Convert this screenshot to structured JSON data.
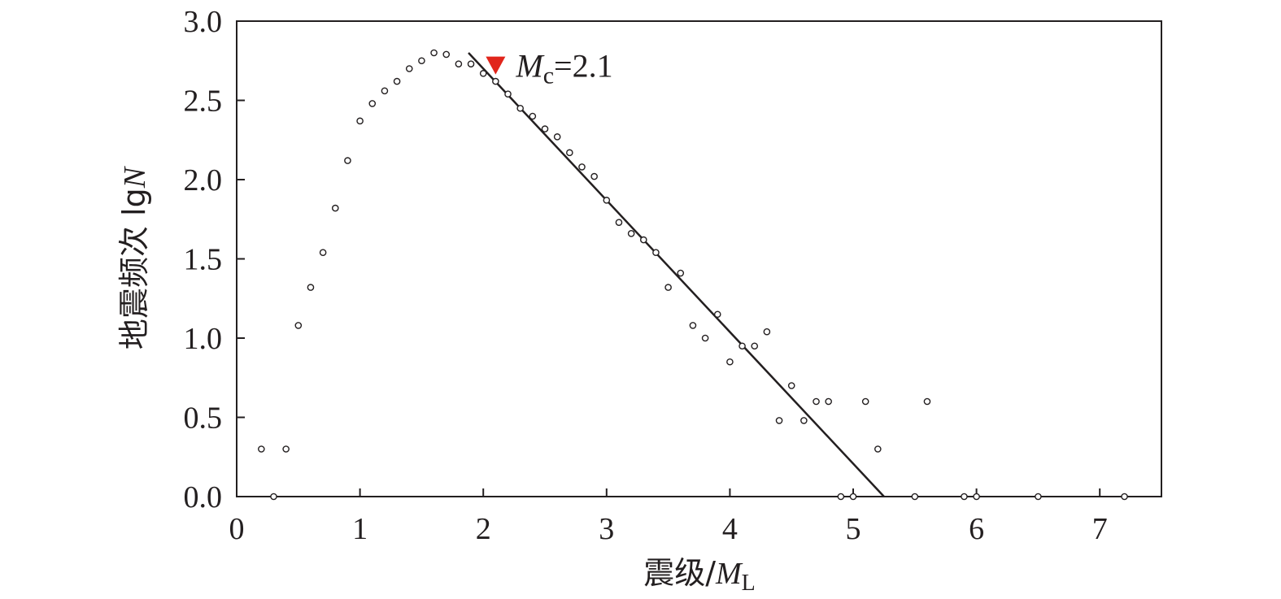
{
  "chart_data": {
    "type": "scatter",
    "xlabel_prefix": "震级/",
    "xlabel_var": "M",
    "xlabel_sub": "L",
    "ylabel_prefix": "地震频次 lg",
    "ylabel_var": "N",
    "xlim": [
      0,
      7.5
    ],
    "ylim": [
      0,
      3.0
    ],
    "xticks": [
      0,
      1,
      2,
      3,
      4,
      5,
      6,
      7
    ],
    "yticks": [
      0.0,
      0.5,
      1.0,
      1.5,
      2.0,
      2.5,
      3.0
    ],
    "xtick_labels": [
      "0",
      "1",
      "2",
      "3",
      "4",
      "5",
      "6",
      "7"
    ],
    "ytick_labels": [
      "0.0",
      "0.5",
      "1.0",
      "1.5",
      "2.0",
      "2.5",
      "3.0"
    ],
    "grid": false,
    "series": [
      {
        "marker": "open-circle",
        "color": "#231f20",
        "x": [
          0.2,
          0.3,
          0.4,
          0.5,
          0.6,
          0.7,
          0.8,
          0.9,
          1.0,
          1.1,
          1.2,
          1.3,
          1.4,
          1.5,
          1.6,
          1.7,
          1.8,
          1.9,
          2.0,
          2.1,
          2.2,
          2.3,
          2.4,
          2.5,
          2.6,
          2.7,
          2.8,
          2.9,
          3.0,
          3.1,
          3.2,
          3.3,
          3.4,
          3.5,
          3.6,
          3.7,
          3.8,
          3.9,
          4.0,
          4.1,
          4.2,
          4.3,
          4.4,
          4.5,
          4.6,
          4.7,
          4.8,
          4.9,
          5.0,
          5.1,
          5.2,
          5.5,
          5.6,
          5.9,
          6.0,
          6.5,
          7.2
        ],
        "y": [
          0.3,
          0.0,
          0.3,
          1.08,
          1.32,
          1.54,
          1.82,
          2.12,
          2.37,
          2.48,
          2.56,
          2.62,
          2.7,
          2.75,
          2.8,
          2.79,
          2.73,
          2.73,
          2.67,
          2.62,
          2.54,
          2.45,
          2.4,
          2.32,
          2.27,
          2.17,
          2.08,
          2.02,
          1.87,
          1.73,
          1.66,
          1.62,
          1.54,
          1.32,
          1.41,
          1.08,
          1.0,
          1.15,
          0.85,
          0.95,
          0.95,
          1.04,
          0.48,
          0.7,
          0.48,
          0.6,
          0.6,
          0.0,
          0.0,
          0.6,
          0.3,
          0.0,
          0.6,
          0.0,
          0.0,
          0.0,
          0.0
        ]
      }
    ],
    "fit_line": {
      "x": [
        1.88,
        5.25
      ],
      "y": [
        2.8,
        0.0
      ],
      "color": "#231f20"
    },
    "annotation": {
      "marker": "down-triangle",
      "marker_x": 2.1,
      "marker_y": 2.72,
      "marker_color": "#e1251b",
      "label_var": "M",
      "label_sub": "c",
      "label_rest": "=2.1"
    }
  }
}
